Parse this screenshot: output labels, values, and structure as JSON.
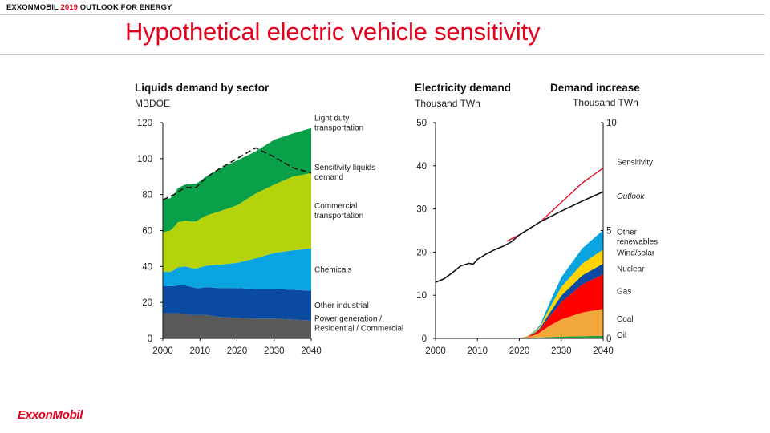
{
  "header": {
    "brand": "EXXONMOBIL",
    "year": "2019",
    "outlook": "OUTLOOK FOR ENERGY"
  },
  "page_title": "Hypothetical electric vehicle sensitivity",
  "logo": "ExxonMobil",
  "colors": {
    "power": "#595959",
    "other_industrial": "#0a4aa0",
    "chemicals": "#0aa5e0",
    "commercial": "#b5d30a",
    "light_duty": "#0aa04a",
    "sensitivity_line": "#e3001b",
    "oil": "#1e9e3c",
    "coal": "#f2a83a",
    "gas": "#ff0000",
    "nuclear": "#0a4aa0",
    "wind_solar": "#ffd400",
    "other_renewables": "#0aa5e0"
  },
  "chart_data": [
    {
      "type": "area",
      "title": "Liquids demand by sector",
      "ylabel": "MBDOE",
      "xlim": [
        2000,
        2040
      ],
      "ylim": [
        0,
        120
      ],
      "x_ticks": [
        2000,
        2010,
        2020,
        2030,
        2040
      ],
      "y_ticks": [
        0,
        20,
        40,
        60,
        80,
        100,
        120
      ],
      "x": [
        2000,
        2002,
        2003,
        2004,
        2006,
        2008,
        2009,
        2010,
        2012,
        2015,
        2020,
        2025,
        2030,
        2035,
        2040
      ],
      "series": [
        {
          "name": "Power generation / Residential / Commercial",
          "label_lines": [
            "Power generation /",
            "Residential / Commercial"
          ],
          "color": "#595959",
          "values": [
            14,
            14,
            14,
            14,
            13.5,
            13,
            13,
            13,
            13,
            12,
            11.5,
            11,
            11,
            10.5,
            10
          ]
        },
        {
          "name": "Other industrial",
          "label_lines": [
            "Other industrial"
          ],
          "color": "#0a4aa0",
          "values": [
            15,
            15,
            15,
            15.5,
            16,
            15.5,
            15,
            15,
            15.5,
            16,
            16.5,
            16.5,
            16.5,
            16.5,
            16.5
          ]
        },
        {
          "name": "Chemicals",
          "label_lines": [
            "Chemicals"
          ],
          "color": "#0aa5e0",
          "values": [
            8,
            8,
            9,
            10,
            10.5,
            10.5,
            11,
            11.5,
            12,
            13,
            14,
            17,
            20,
            22,
            23.5
          ]
        },
        {
          "name": "Commercial transportation",
          "label_lines": [
            "Commercial",
            "transportation"
          ],
          "color": "#b5d30a",
          "values": [
            22,
            23,
            24,
            25,
            25.5,
            26,
            26,
            27,
            28,
            29.5,
            32,
            36,
            38,
            41,
            42
          ]
        },
        {
          "name": "Light duty transportation",
          "label_lines": [
            "Light duty",
            "transportation"
          ],
          "color": "#0aa04a",
          "values": [
            18,
            18,
            18,
            19,
            20,
            21,
            21,
            21,
            22,
            23.5,
            25,
            23.5,
            25,
            24,
            25
          ]
        }
      ],
      "sensitivity_liquids_demand": {
        "name": "Sensitivity liquids demand",
        "label_lines": [
          "Sensitivity liquids",
          "demand"
        ],
        "x": [
          2000,
          2003,
          2006,
          2009,
          2012,
          2015,
          2020,
          2025,
          2030,
          2035,
          2040
        ],
        "values": [
          77,
          80,
          84,
          84,
          90,
          94,
          100,
          106,
          101,
          95,
          92
        ]
      }
    },
    {
      "type": "line",
      "title": "Electricity demand",
      "ylabel": "Thousand TWh",
      "xlim": [
        2000,
        2040
      ],
      "ylim": [
        0,
        50
      ],
      "x_ticks": [
        2000,
        2010,
        2020,
        2030,
        2040
      ],
      "y_ticks": [
        0,
        10,
        20,
        30,
        40,
        50
      ],
      "series": [
        {
          "name": "Sensitivity",
          "color": "#e3001b",
          "x": [
            2017,
            2020,
            2025,
            2030,
            2035,
            2040
          ],
          "values": [
            22.5,
            24,
            27,
            31.5,
            36,
            39.5
          ]
        },
        {
          "name": "Outlook",
          "color": "#111111",
          "x": [
            2000,
            2002,
            2004,
            2006,
            2008,
            2009,
            2010,
            2012,
            2014,
            2016,
            2018,
            2020,
            2025,
            2030,
            2035,
            2040
          ],
          "values": [
            13,
            13.8,
            15.2,
            16.8,
            17.4,
            17.2,
            18.3,
            19.5,
            20.5,
            21.3,
            22.3,
            24,
            27,
            29.5,
            31.8,
            34
          ]
        }
      ]
    },
    {
      "type": "area",
      "title": "Demand increase",
      "ylabel": "Thousand TWh",
      "xlim": [
        2000,
        2040
      ],
      "ylim": [
        0,
        10
      ],
      "y_ticks_right": [
        0,
        5,
        10
      ],
      "x": [
        2020,
        2022,
        2024,
        2025,
        2027,
        2030,
        2035,
        2040
      ],
      "series": [
        {
          "name": "Oil",
          "color": "#1e9e3c",
          "values": [
            0,
            0.02,
            0.03,
            0.04,
            0.06,
            0.08,
            0.1,
            0.12
          ]
        },
        {
          "name": "Coal",
          "color": "#f2a83a",
          "values": [
            0,
            0.05,
            0.15,
            0.25,
            0.5,
            0.8,
            1.1,
            1.25
          ]
        },
        {
          "name": "Gas",
          "color": "#ff0000",
          "values": [
            0,
            0.02,
            0.1,
            0.15,
            0.4,
            0.8,
            1.3,
            1.6
          ]
        },
        {
          "name": "Nuclear",
          "color": "#0a4aa0",
          "values": [
            0,
            0,
            0.03,
            0.05,
            0.15,
            0.3,
            0.42,
            0.5
          ]
        },
        {
          "name": "Wind/solar",
          "color": "#ffd400",
          "values": [
            0,
            0.01,
            0.05,
            0.08,
            0.22,
            0.4,
            0.55,
            0.65
          ]
        },
        {
          "name": "Other renewables",
          "label_lines": [
            "Other",
            "renewables"
          ],
          "color": "#0aa5e0",
          "values": [
            0,
            0.01,
            0.05,
            0.08,
            0.22,
            0.45,
            0.7,
            0.9
          ]
        }
      ],
      "legend_labels": [
        {
          "text": "Sensitivity",
          "italic": false
        },
        {
          "text": "Outlook",
          "italic": true
        }
      ]
    }
  ]
}
